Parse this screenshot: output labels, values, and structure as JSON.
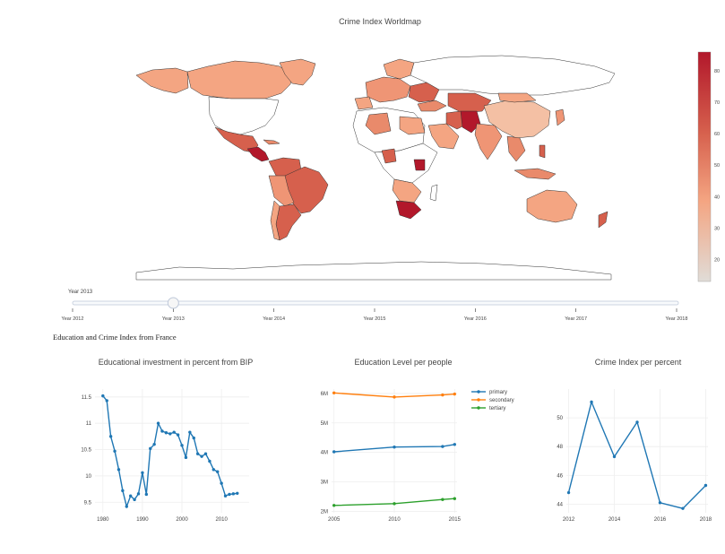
{
  "map": {
    "title": "Crime Index Worldmap",
    "colorbar": {
      "ticks": [
        "80",
        "70",
        "60",
        "50",
        "40",
        "30",
        "20"
      ],
      "tick_values": [
        80,
        70,
        60,
        50,
        40,
        30,
        20
      ],
      "range": [
        13,
        86
      ],
      "colors": [
        "#b2182b",
        "#d6604d",
        "#f4a582",
        "#e0dcd7"
      ]
    }
  },
  "slider": {
    "current_label": "Year 2013",
    "steps": [
      "Year 2012",
      "Year 2013",
      "Year 2014",
      "Year 2015",
      "Year 2016",
      "Year 2017",
      "Year 2018"
    ],
    "active_index": 1
  },
  "section_heading": "Education and Crime Index from France",
  "chart_data": [
    {
      "type": "line",
      "title": "Educational investment in percent from BIP",
      "xlabel": "",
      "ylabel": "",
      "xlim": [
        1978,
        2017
      ],
      "ylim": [
        9.3,
        11.65
      ],
      "xticks": [
        1980,
        1990,
        2000,
        2010
      ],
      "xtick_labels": [
        "1980",
        "1990",
        "2000",
        "2010"
      ],
      "yticks": [
        9.5,
        10,
        10.5,
        11,
        11.5
      ],
      "ytick_labels": [
        "9.5",
        "10",
        "10.5",
        "11",
        "11.5"
      ],
      "grid": true,
      "color": "#1f77b4",
      "x": [
        1980,
        1981,
        1982,
        1983,
        1984,
        1985,
        1986,
        1987,
        1988,
        1989,
        1990,
        1991,
        1992,
        1993,
        1994,
        1995,
        1996,
        1997,
        1998,
        1999,
        2000,
        2001,
        2002,
        2003,
        2004,
        2005,
        2006,
        2007,
        2008,
        2009,
        2010,
        2011,
        2012,
        2013,
        2014
      ],
      "y": [
        11.52,
        11.43,
        10.75,
        10.47,
        10.12,
        9.72,
        9.42,
        9.62,
        9.55,
        9.66,
        10.06,
        9.65,
        10.52,
        10.6,
        11.0,
        10.85,
        10.82,
        10.8,
        10.83,
        10.78,
        10.58,
        10.35,
        10.83,
        10.72,
        10.42,
        10.37,
        10.42,
        10.28,
        10.12,
        10.08,
        9.86,
        9.62,
        9.65,
        9.66,
        9.67
      ]
    },
    {
      "type": "line",
      "title": "Education Level per people",
      "xlabel": "",
      "ylabel": "",
      "xlim": [
        2004.8,
        2015.2
      ],
      "ylim": [
        1.95,
        6.15
      ],
      "xticks": [
        2005,
        2010,
        2015
      ],
      "xtick_labels": [
        "2005",
        "2010",
        "2015"
      ],
      "yticks": [
        2,
        3,
        4,
        5,
        6
      ],
      "ytick_labels": [
        "2M",
        "3M",
        "4M",
        "5M",
        "6M"
      ],
      "grid": true,
      "legend": "top-right",
      "categories_x": [
        2005,
        2010,
        2014,
        2015
      ],
      "series": [
        {
          "name": "primary",
          "color": "#1f77b4",
          "x": [
            2005,
            2010,
            2014,
            2015
          ],
          "y": [
            4.02,
            4.18,
            4.2,
            4.27
          ]
        },
        {
          "name": "secondary",
          "color": "#ff7f0e",
          "x": [
            2005,
            2010,
            2014,
            2015
          ],
          "y": [
            6.02,
            5.88,
            5.95,
            5.98
          ]
        },
        {
          "name": "tertiary",
          "color": "#2ca02c",
          "x": [
            2005,
            2010,
            2014,
            2015
          ],
          "y": [
            2.2,
            2.26,
            2.4,
            2.43
          ]
        }
      ]
    },
    {
      "type": "line",
      "title": "Crime Index per percent",
      "xlabel": "",
      "ylabel": "",
      "xlim": [
        2011.9,
        2018.1
      ],
      "ylim": [
        43.4,
        52.0
      ],
      "xticks": [
        2012,
        2014,
        2016,
        2018
      ],
      "xtick_labels": [
        "2012",
        "2014",
        "2016",
        "2018"
      ],
      "yticks": [
        44,
        46,
        48,
        50
      ],
      "ytick_labels": [
        "44",
        "46",
        "48",
        "50"
      ],
      "grid": true,
      "color": "#1f77b4",
      "x": [
        2012,
        2013,
        2014,
        2015,
        2016,
        2017,
        2018
      ],
      "y": [
        44.8,
        51.1,
        47.3,
        49.7,
        44.1,
        43.7,
        45.3
      ]
    }
  ]
}
